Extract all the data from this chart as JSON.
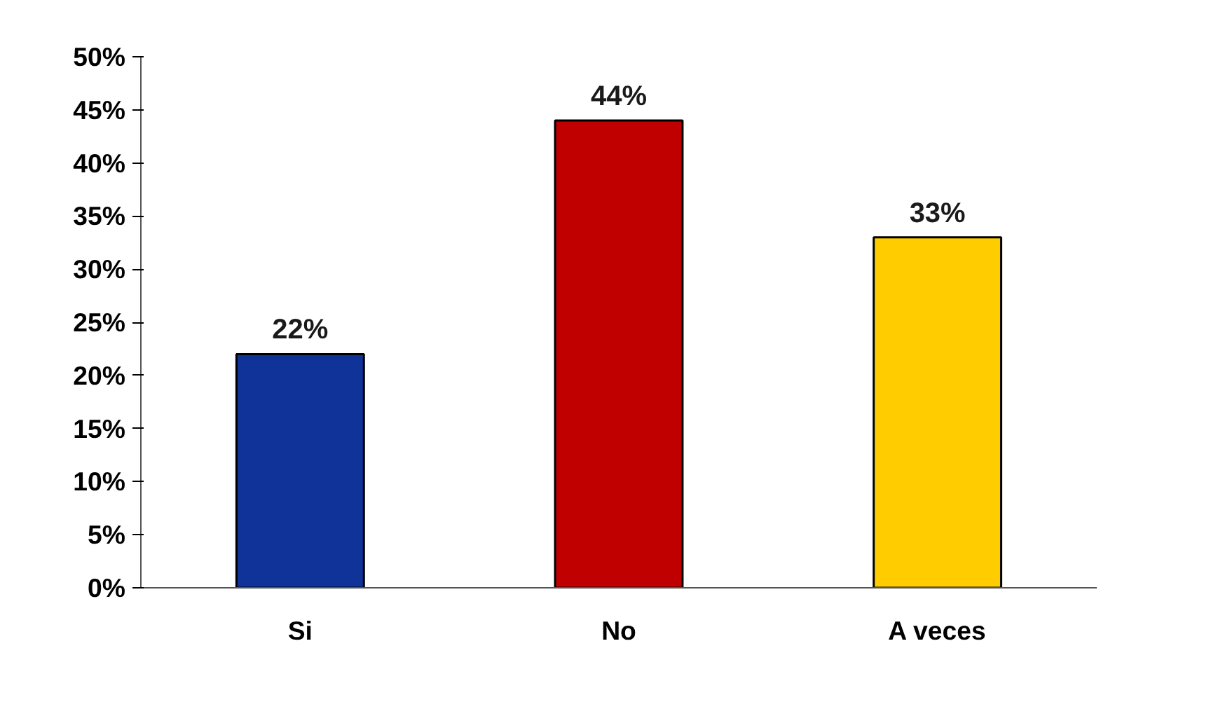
{
  "chart_data": {
    "type": "bar",
    "categories": [
      "Si",
      "No",
      "A veces"
    ],
    "values": [
      22,
      44,
      33
    ],
    "colors": [
      "#0f3399",
      "#c00000",
      "#ffcc00"
    ],
    "ylim": [
      0,
      50
    ],
    "yticks": [
      {
        "value": 0,
        "label": "0%"
      },
      {
        "value": 5,
        "label": "5%"
      },
      {
        "value": 10,
        "label": "10%"
      },
      {
        "value": 15,
        "label": "15%"
      },
      {
        "value": 20,
        "label": "20%"
      },
      {
        "value": 25,
        "label": "25%"
      },
      {
        "value": 30,
        "label": "30%"
      },
      {
        "value": 35,
        "label": "35%"
      },
      {
        "value": 40,
        "label": "40%"
      },
      {
        "value": 45,
        "label": "45%"
      },
      {
        "value": 50,
        "label": "50%"
      }
    ],
    "value_labels": [
      "22%",
      "44%",
      "33%"
    ],
    "grid": false
  }
}
